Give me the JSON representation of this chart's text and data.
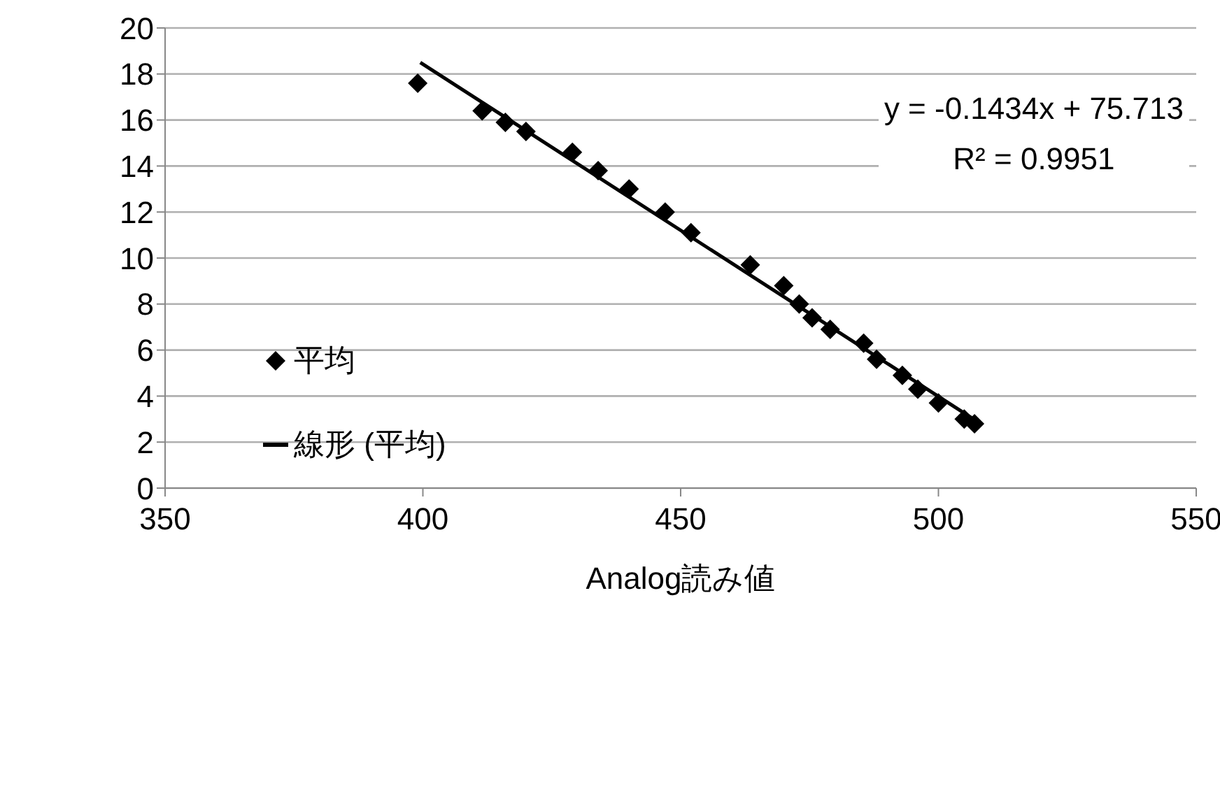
{
  "chart_data": {
    "type": "scatter",
    "xlabel": "Analog読み値",
    "xlim": [
      350,
      550
    ],
    "xticks": [
      350,
      400,
      450,
      500,
      550
    ],
    "ylim": [
      0,
      20
    ],
    "yticks": [
      0,
      2,
      4,
      6,
      8,
      10,
      12,
      14,
      16,
      18,
      20
    ],
    "grid": "y",
    "legend": "left",
    "annotations": [
      "y = -0.1434x + 75.713",
      "R² = 0.9951"
    ],
    "series": [
      {
        "name": "平均",
        "marker": "diamond",
        "color": "#000000",
        "x": [
          399,
          411.5,
          416,
          420,
          429,
          434,
          440,
          447,
          452,
          463.5,
          470,
          473,
          475.5,
          479,
          485.5,
          488,
          493,
          496,
          500,
          505,
          507
        ],
        "values": [
          17.6,
          16.4,
          15.9,
          15.5,
          14.6,
          13.8,
          13.0,
          12.0,
          11.1,
          9.7,
          8.8,
          8.0,
          7.4,
          6.9,
          6.3,
          5.6,
          4.9,
          4.3,
          3.7,
          3.0,
          2.8
        ]
      },
      {
        "name": "線形 (平均)",
        "type": "line",
        "marker": "none",
        "line_style": "solid",
        "color": "#000000",
        "x": [
          399.5,
          507.5
        ],
        "values": [
          18.5,
          2.9
        ]
      }
    ]
  }
}
